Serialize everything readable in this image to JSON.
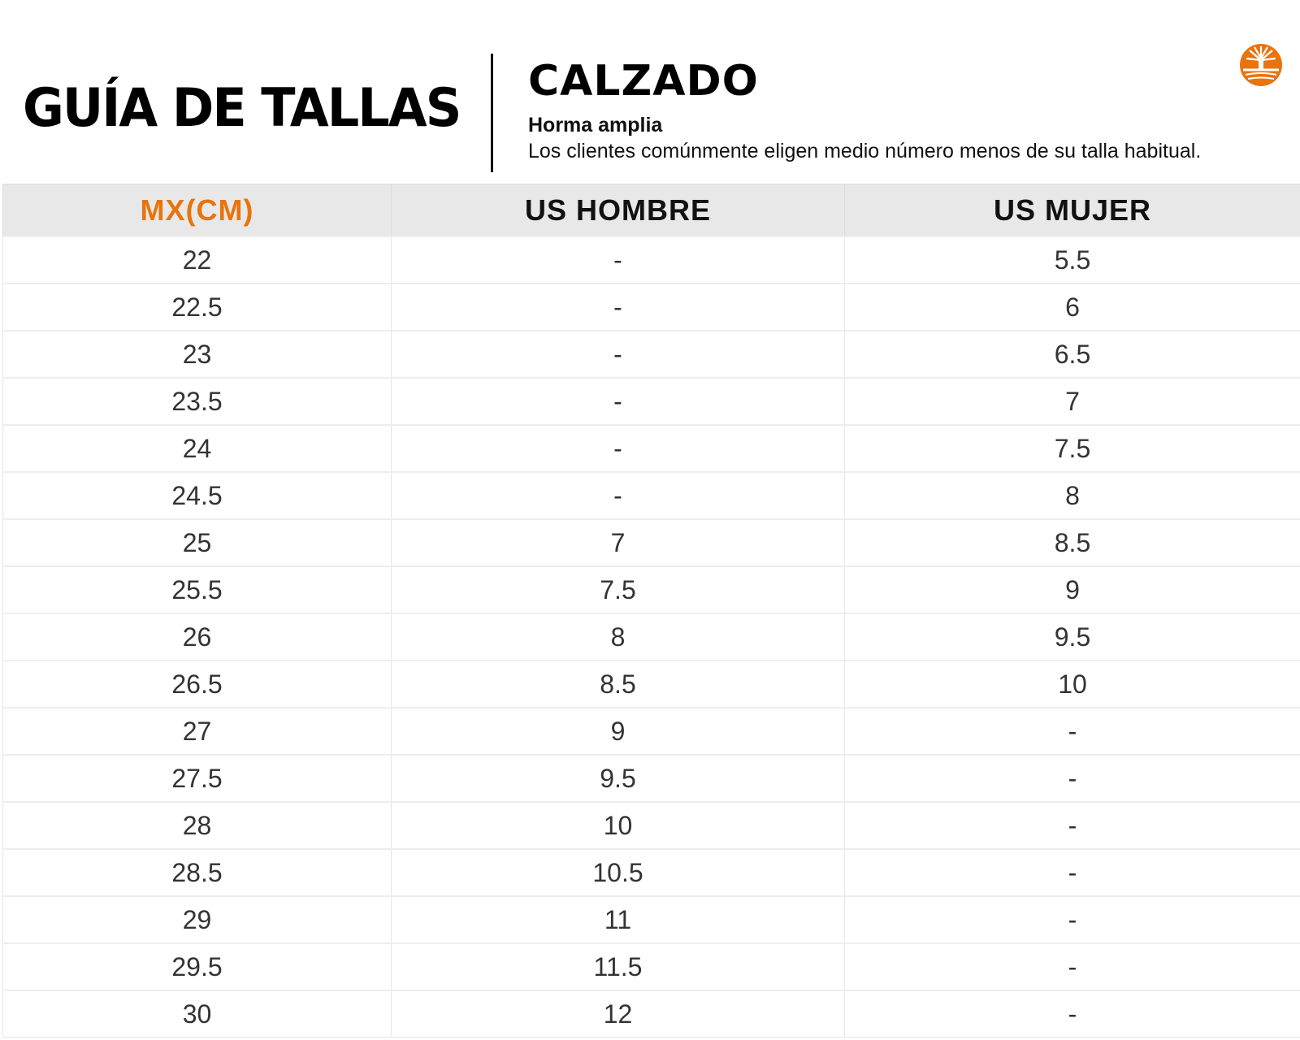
{
  "header": {
    "title": "GUÍA DE TALLAS",
    "category": "CALZADO",
    "fit": "Horma amplia",
    "note": "Los clientes comúnmente eligen medio número menos de su talla habitual.",
    "logo_icon": "timberland-tree-logo",
    "accent_color": "#e8740e"
  },
  "table": {
    "columns": [
      "MX(CM)",
      "US HOMBRE",
      "US MUJER"
    ],
    "rows": [
      [
        "22",
        "-",
        "5.5"
      ],
      [
        "22.5",
        "-",
        "6"
      ],
      [
        "23",
        "-",
        "6.5"
      ],
      [
        "23.5",
        "-",
        "7"
      ],
      [
        "24",
        "-",
        "7.5"
      ],
      [
        "24.5",
        "-",
        "8"
      ],
      [
        "25",
        "7",
        "8.5"
      ],
      [
        "25.5",
        "7.5",
        "9"
      ],
      [
        "26",
        "8",
        "9.5"
      ],
      [
        "26.5",
        "8.5",
        "10"
      ],
      [
        "27",
        "9",
        "-"
      ],
      [
        "27.5",
        "9.5",
        "-"
      ],
      [
        "28",
        "10",
        "-"
      ],
      [
        "28.5",
        "10.5",
        "-"
      ],
      [
        "29",
        "11",
        "-"
      ],
      [
        "29.5",
        "11.5",
        "-"
      ],
      [
        "30",
        "12",
        "-"
      ]
    ]
  }
}
